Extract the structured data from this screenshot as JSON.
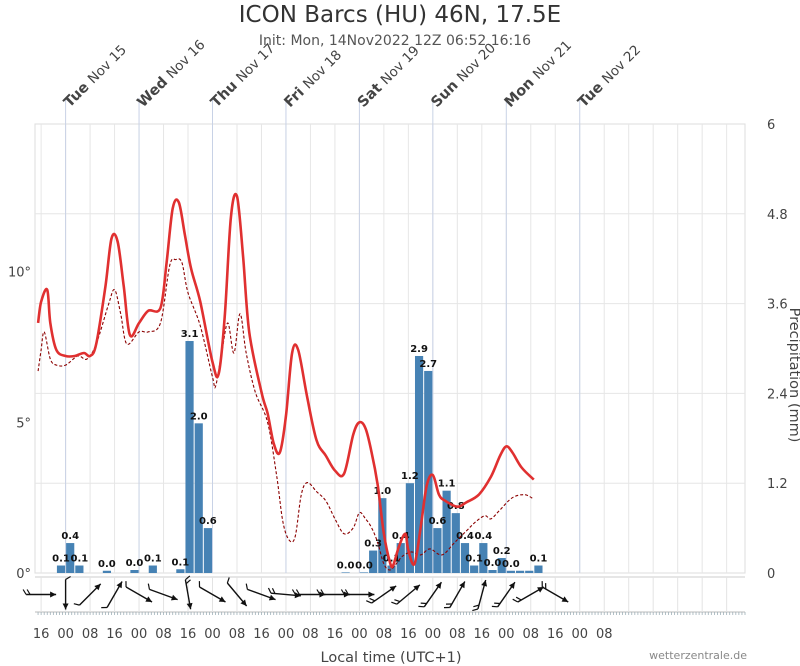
{
  "header": {
    "title": "ICON Barcs (HU) 46N, 17.5E",
    "subtitle": "Init: Mon, 14Nov2022 12Z 06:52 16:16"
  },
  "footer": {
    "credit": "wetterzentrale.de"
  },
  "chart_data": {
    "type": "bar",
    "xlabel": "Local time (UTC+1)",
    "ylabel_right": "Precipitation (mm)",
    "temp_axis": {
      "min": 0,
      "max": 14.9,
      "ticks": [
        {
          "v": 0,
          "label": "0°"
        },
        {
          "v": 5,
          "label": "5°"
        },
        {
          "v": 10,
          "label": "10°"
        }
      ]
    },
    "precip_axis": {
      "min": 0,
      "max": 6,
      "ticks": [
        "0",
        "1.2",
        "2.4",
        "3.6",
        "4.8",
        "6"
      ]
    },
    "x_range_hours": [
      14,
      246
    ],
    "day_labels": [
      {
        "day": "Tue",
        "date": "Nov 15",
        "hour": 24
      },
      {
        "day": "Wed",
        "date": "Nov 16",
        "hour": 48
      },
      {
        "day": "Thu",
        "date": "Nov 17",
        "hour": 72
      },
      {
        "day": "Fri",
        "date": "Nov 18",
        "hour": 96
      },
      {
        "day": "Sat",
        "date": "Nov 19",
        "hour": 120
      },
      {
        "day": "Sun",
        "date": "Nov 20",
        "hour": 144
      },
      {
        "day": "Mon",
        "date": "Nov 21",
        "hour": 168
      },
      {
        "day": "Tue",
        "date": "Nov 22",
        "hour": 192
      }
    ],
    "x_ticks": [
      "16",
      "00",
      "08",
      "16",
      "00",
      "08",
      "16",
      "00",
      "08",
      "16",
      "00",
      "08",
      "16",
      "00",
      "08",
      "16",
      "00",
      "08",
      "16",
      "00",
      "08",
      "16",
      "00",
      "08"
    ],
    "temperature": [
      [
        15,
        8.3
      ],
      [
        16,
        9.0
      ],
      [
        18,
        9.4
      ],
      [
        19,
        8.3
      ],
      [
        21,
        7.4
      ],
      [
        24,
        7.2
      ],
      [
        27,
        7.2
      ],
      [
        30,
        7.3
      ],
      [
        32,
        7.2
      ],
      [
        34,
        7.6
      ],
      [
        37,
        9.5
      ],
      [
        39,
        11.1
      ],
      [
        41,
        11.0
      ],
      [
        43,
        9.5
      ],
      [
        45,
        7.9
      ],
      [
        48,
        8.3
      ],
      [
        51,
        8.7
      ],
      [
        55,
        8.8
      ],
      [
        57,
        10.3
      ],
      [
        59,
        12.1
      ],
      [
        61,
        12.3
      ],
      [
        63,
        11.2
      ],
      [
        65,
        10.1
      ],
      [
        68,
        9.0
      ],
      [
        72,
        7.0
      ],
      [
        74,
        6.6
      ],
      [
        76,
        8.5
      ],
      [
        78,
        11.8
      ],
      [
        80,
        12.5
      ],
      [
        82,
        10.5
      ],
      [
        84,
        8.0
      ],
      [
        88,
        6.0
      ],
      [
        90,
        5.3
      ],
      [
        92,
        4.3
      ],
      [
        94,
        4.0
      ],
      [
        96,
        5.2
      ],
      [
        98,
        7.3
      ],
      [
        100,
        7.4
      ],
      [
        103,
        5.8
      ],
      [
        106,
        4.4
      ],
      [
        109,
        3.9
      ],
      [
        112,
        3.4
      ],
      [
        115,
        3.3
      ],
      [
        118,
        4.6
      ],
      [
        120,
        5.0
      ],
      [
        122,
        4.8
      ],
      [
        124,
        4.0
      ],
      [
        126,
        2.9
      ],
      [
        128,
        1.3
      ],
      [
        130,
        0.35
      ],
      [
        131,
        0.25
      ],
      [
        133,
        0.9
      ],
      [
        135,
        1.3
      ],
      [
        136,
        0.75
      ],
      [
        138,
        0.3
      ],
      [
        140,
        1.5
      ],
      [
        142,
        2.9
      ],
      [
        144,
        3.25
      ],
      [
        146,
        2.6
      ],
      [
        148,
        2.4
      ],
      [
        152,
        2.2
      ],
      [
        155,
        2.35
      ],
      [
        159,
        2.6
      ],
      [
        163,
        3.2
      ],
      [
        166,
        3.9
      ],
      [
        168,
        4.2
      ],
      [
        170,
        4.0
      ],
      [
        173,
        3.5
      ],
      [
        177,
        3.1
      ]
    ],
    "dewpoint": [
      [
        15,
        6.7
      ],
      [
        16,
        7.4
      ],
      [
        17,
        8.0
      ],
      [
        19,
        7.1
      ],
      [
        21,
        6.9
      ],
      [
        24,
        6.9
      ],
      [
        28,
        7.2
      ],
      [
        31,
        7.1
      ],
      [
        34,
        7.6
      ],
      [
        38,
        8.9
      ],
      [
        40,
        9.4
      ],
      [
        42,
        8.6
      ],
      [
        44,
        7.6
      ],
      [
        48,
        8.0
      ],
      [
        51,
        8.0
      ],
      [
        55,
        8.3
      ],
      [
        58,
        10.2
      ],
      [
        60,
        10.4
      ],
      [
        62,
        10.3
      ],
      [
        64,
        9.3
      ],
      [
        68,
        8.2
      ],
      [
        72,
        6.5
      ],
      [
        73,
        6.2
      ],
      [
        75,
        7.3
      ],
      [
        77,
        8.3
      ],
      [
        79,
        7.3
      ],
      [
        81,
        8.6
      ],
      [
        83,
        7.3
      ],
      [
        86,
        6.0
      ],
      [
        90,
        5.0
      ],
      [
        93,
        3.2
      ],
      [
        95,
        1.7
      ],
      [
        97,
        1.1
      ],
      [
        99,
        1.2
      ],
      [
        101,
        2.6
      ],
      [
        103,
        3.0
      ],
      [
        106,
        2.7
      ],
      [
        109,
        2.4
      ],
      [
        112,
        1.8
      ],
      [
        115,
        1.3
      ],
      [
        118,
        1.5
      ],
      [
        120,
        2.0
      ],
      [
        122,
        1.8
      ],
      [
        124,
        1.5
      ],
      [
        126,
        1.0
      ],
      [
        128,
        0.3
      ],
      [
        130,
        0.1
      ],
      [
        132,
        0.3
      ],
      [
        134,
        0.55
      ],
      [
        137,
        0.7
      ],
      [
        140,
        0.6
      ],
      [
        143,
        0.8
      ],
      [
        147,
        0.6
      ],
      [
        151,
        1.0
      ],
      [
        155,
        1.4
      ],
      [
        158,
        1.7
      ],
      [
        161,
        1.9
      ],
      [
        163,
        1.8
      ],
      [
        166,
        2.1
      ],
      [
        170,
        2.5
      ],
      [
        174,
        2.6
      ],
      [
        177,
        2.45
      ]
    ],
    "precip_bars": [
      {
        "t": 24,
        "v": 0.1,
        "label": "0.1"
      },
      {
        "t": 27,
        "v": 0.4,
        "label": "0.4"
      },
      {
        "t": 30,
        "v": 0.1,
        "label": "0.1"
      },
      {
        "t": 39,
        "v": 0.03,
        "label": "0.0"
      },
      {
        "t": 48,
        "v": 0.04,
        "label": "0.0"
      },
      {
        "t": 54,
        "v": 0.1,
        "label": "0.1"
      },
      {
        "t": 63,
        "v": 0.05,
        "label": "0.1"
      },
      {
        "t": 66,
        "v": 3.1,
        "label": "3.1"
      },
      {
        "t": 69,
        "v": 2.0,
        "label": "2.0"
      },
      {
        "t": 72,
        "v": 0.6,
        "label": "0.6"
      },
      {
        "t": 117,
        "v": 0.0,
        "label": "0.0"
      },
      {
        "t": 123,
        "v": 0.0,
        "label": "0.0"
      },
      {
        "t": 126,
        "v": 0.3,
        "label": "0.3"
      },
      {
        "t": 129,
        "v": 1.0,
        "label": "1.0"
      },
      {
        "t": 132,
        "v": 0.1,
        "label": "0.1"
      },
      {
        "t": 135,
        "v": 0.4,
        "label": "0.4"
      },
      {
        "t": 138,
        "v": 1.2,
        "label": "1.2"
      },
      {
        "t": 141,
        "v": 2.9,
        "label": "2.9"
      },
      {
        "t": 144,
        "v": 2.7,
        "label": "2.7"
      },
      {
        "t": 147,
        "v": 0.6,
        "label": "0.6"
      },
      {
        "t": 150,
        "v": 1.1,
        "label": "1.1"
      },
      {
        "t": 153,
        "v": 0.8,
        "label": "0.8"
      },
      {
        "t": 156,
        "v": 0.4,
        "label": "0.4"
      },
      {
        "t": 159,
        "v": 0.1,
        "label": "0.1"
      },
      {
        "t": 162,
        "v": 0.4,
        "label": "0.4"
      },
      {
        "t": 165,
        "v": 0.04,
        "label": "0.0"
      },
      {
        "t": 168,
        "v": 0.2,
        "label": "0.2"
      },
      {
        "t": 171,
        "v": 0.03,
        "label": "0.0"
      },
      {
        "t": 174,
        "v": 0.03,
        "label": ""
      },
      {
        "t": 177,
        "v": 0.03,
        "label": ""
      },
      {
        "t": 180,
        "v": 0.1,
        "label": "0.1"
      }
    ],
    "wind_barbs": [
      {
        "t": 16,
        "dir": 270,
        "kts": 10
      },
      {
        "t": 24,
        "dir": 0,
        "kts": 5
      },
      {
        "t": 32,
        "dir": 225,
        "kts": 5
      },
      {
        "t": 40,
        "dir": 210,
        "kts": 5
      },
      {
        "t": 48,
        "dir": 300,
        "kts": 5
      },
      {
        "t": 56,
        "dir": 290,
        "kts": 5
      },
      {
        "t": 64,
        "dir": 350,
        "kts": 10
      },
      {
        "t": 72,
        "dir": 300,
        "kts": 5
      },
      {
        "t": 80,
        "dir": 320,
        "kts": 5
      },
      {
        "t": 88,
        "dir": 290,
        "kts": 5
      },
      {
        "t": 96,
        "dir": 275,
        "kts": 10
      },
      {
        "t": 104,
        "dir": 270,
        "kts": 10
      },
      {
        "t": 112,
        "dir": 270,
        "kts": 10
      },
      {
        "t": 120,
        "dir": 270,
        "kts": 10
      },
      {
        "t": 128,
        "dir": 235,
        "kts": 10
      },
      {
        "t": 136,
        "dir": 230,
        "kts": 10
      },
      {
        "t": 144,
        "dir": 215,
        "kts": 10
      },
      {
        "t": 152,
        "dir": 210,
        "kts": 10
      },
      {
        "t": 160,
        "dir": 195,
        "kts": 10
      },
      {
        "t": 168,
        "dir": 215,
        "kts": 10
      },
      {
        "t": 176,
        "dir": 240,
        "kts": 10
      },
      {
        "t": 184,
        "dir": 300,
        "kts": 10
      }
    ],
    "colors": {
      "temperature": "#e03030",
      "dewpoint": "#8b0000",
      "bars": "#4682b4",
      "grid": "#e6e6e6",
      "day_lines": "#c8d2e6",
      "wind": "#111111"
    }
  }
}
